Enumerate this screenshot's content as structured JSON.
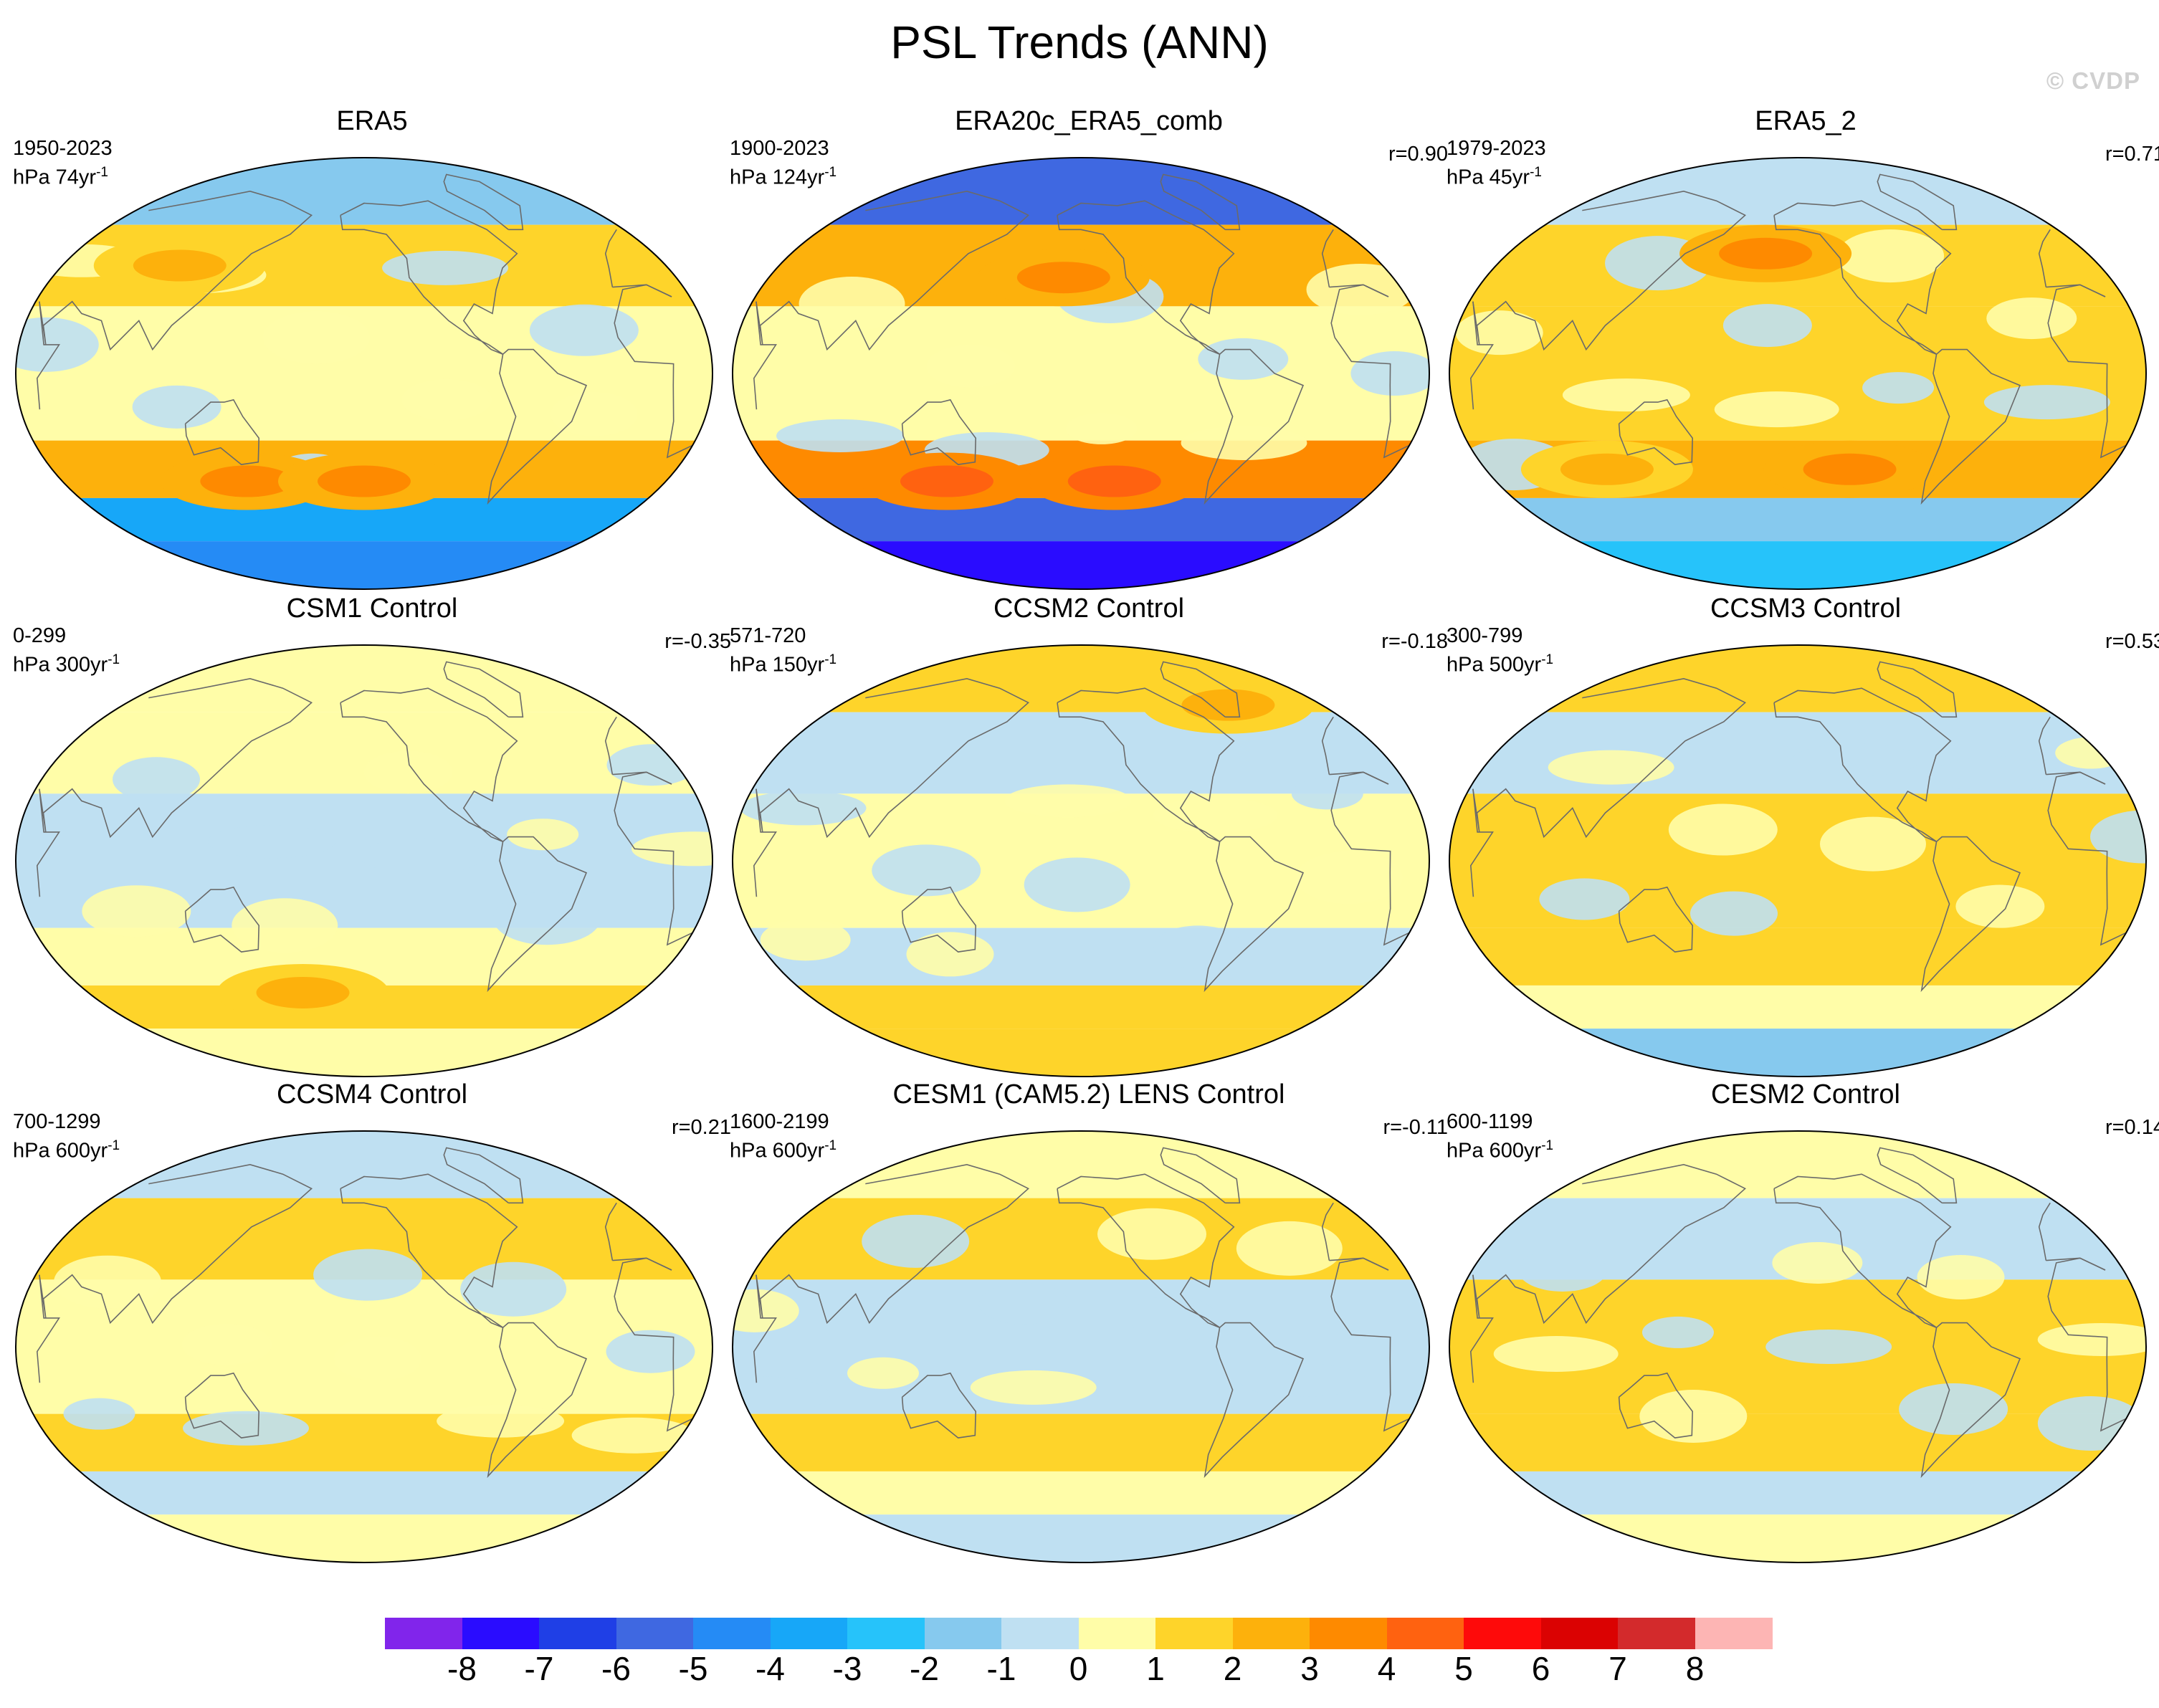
{
  "figure": {
    "title": "PSL Trends (ANN)",
    "watermark": "© CVDP"
  },
  "panels": [
    {
      "name": "ERA5",
      "years": "1950-2023",
      "units_base": "hPa 74yr",
      "units_exp": "-1",
      "r": "",
      "fields": {
        "nh_band": -2,
        "mid_n": 1,
        "tropics": 0,
        "mid_s": 2,
        "south": -4,
        "polar_s": -5,
        "blobs": [
          {
            "lon": 100,
            "lat": 45,
            "v": 2
          },
          {
            "lon": 140,
            "lat": -45,
            "v": 3
          },
          {
            "lon": -150,
            "lat": -45,
            "v": 3
          }
        ]
      }
    },
    {
      "name": "ERA20c_ERA5_comb",
      "years": "1900-2023",
      "units_base": "hPa 124yr",
      "units_exp": "-1",
      "r": "r=0.90",
      "fields": {
        "nh_band": -6,
        "mid_n": 2,
        "tropics": 0,
        "mid_s": 3,
        "south": -6,
        "polar_s": -8,
        "blobs": [
          {
            "lon": -160,
            "lat": 40,
            "v": 3
          },
          {
            "lon": -130,
            "lat": -45,
            "v": 4
          },
          {
            "lon": 130,
            "lat": -45,
            "v": 4
          }
        ]
      }
    },
    {
      "name": "ERA5_2",
      "years": "1979-2023",
      "units_base": "hPa 45yr",
      "units_exp": "-1",
      "r": "r=0.71",
      "fields": {
        "nh_band": -1,
        "mid_n": 1,
        "tropics": 1,
        "mid_s": 2,
        "south": -2,
        "polar_s": -3,
        "blobs": [
          {
            "lon": -170,
            "lat": 50,
            "v": 3
          },
          {
            "lon": -120,
            "lat": -40,
            "v": 3
          },
          {
            "lon": 100,
            "lat": -40,
            "v": 2
          }
        ]
      }
    },
    {
      "name": "CSM1 Control",
      "years": "0-299",
      "units_base": "hPa 300yr",
      "units_exp": "-1",
      "r": "r=-0.35",
      "fields": {
        "nh_band": 0,
        "mid_n": 0,
        "tropics": -1,
        "mid_s": 0,
        "south": 1,
        "polar_s": 0,
        "blobs": [
          {
            "lon": 170,
            "lat": -55,
            "v": 2
          }
        ]
      }
    },
    {
      "name": "CCSM2 Control",
      "years": "571-720",
      "units_base": "hPa 150yr",
      "units_exp": "-1",
      "r": "r=-0.18",
      "fields": {
        "nh_band": 1,
        "mid_n": -1,
        "tropics": 0,
        "mid_s": -1,
        "south": 1,
        "polar_s": 1,
        "blobs": [
          {
            "lon": -40,
            "lat": 65,
            "v": 2
          }
        ]
      }
    },
    {
      "name": "CCSM3 Control",
      "years": "300-799",
      "units_base": "hPa 500yr",
      "units_exp": "-1",
      "r": "r=0.53",
      "fields": {
        "nh_band": 1,
        "mid_n": -1,
        "tropics": 1,
        "mid_s": 1,
        "south": 0,
        "polar_s": -2,
        "blobs": []
      }
    },
    {
      "name": "CCSM4 Control",
      "years": "700-1299",
      "units_base": "hPa 600yr",
      "units_exp": "-1",
      "r": "r=0.21",
      "fields": {
        "nh_band": -1,
        "mid_n": 1,
        "tropics": 0,
        "mid_s": 1,
        "south": -1,
        "polar_s": 0,
        "blobs": []
      }
    },
    {
      "name": "CESM1 (CAM5.2) LENS Control",
      "years": "1600-2199",
      "units_base": "hPa 600yr",
      "units_exp": "-1",
      "r": "r=-0.11",
      "fields": {
        "nh_band": 0,
        "mid_n": 1,
        "tropics": -1,
        "mid_s": 1,
        "south": 0,
        "polar_s": -1,
        "blobs": []
      }
    },
    {
      "name": "CESM2 Control",
      "years": "600-1199",
      "units_base": "hPa 600yr",
      "units_exp": "-1",
      "r": "r=0.14",
      "fields": {
        "nh_band": 0,
        "mid_n": -1,
        "tropics": 1,
        "mid_s": 1,
        "south": -1,
        "polar_s": 0,
        "blobs": []
      }
    }
  ],
  "colorbar": {
    "labels": [
      "-8",
      "-7",
      "-6",
      "-5",
      "-4",
      "-3",
      "-2",
      "-1",
      "0",
      "1",
      "2",
      "3",
      "4",
      "5",
      "6",
      "7",
      "8"
    ],
    "colors": [
      "#8125eb",
      "#2a0cff",
      "#1f3fe6",
      "#3f68e1",
      "#258bf5",
      "#17a7f8",
      "#26c3fa",
      "#86c9ee",
      "#bfe0f2",
      "#fffda8",
      "#fed42a",
      "#fdb10c",
      "#fe8a00",
      "#ff6210",
      "#fe0a0a",
      "#db0202",
      "#d32a2c",
      "#fdb5b4"
    ]
  }
}
